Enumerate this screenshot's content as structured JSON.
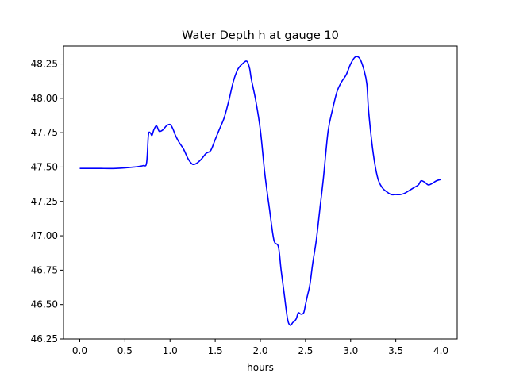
{
  "chart_data": {
    "type": "line",
    "title": "Water Depth h at gauge 10",
    "xlabel": "hours",
    "ylabel": "",
    "xlim": [
      -0.18,
      4.18
    ],
    "ylim": [
      46.25,
      48.38
    ],
    "xticks": [
      0.0,
      0.5,
      1.0,
      1.5,
      2.0,
      2.5,
      3.0,
      3.5,
      4.0
    ],
    "xtick_labels": [
      "0.0",
      "0.5",
      "1.0",
      "1.5",
      "2.0",
      "2.5",
      "3.0",
      "3.5",
      "4.0"
    ],
    "yticks": [
      46.25,
      46.5,
      46.75,
      47.0,
      47.25,
      47.5,
      47.75,
      48.0,
      48.25
    ],
    "ytick_labels": [
      "46.25",
      "46.50",
      "46.75",
      "47.00",
      "47.25",
      "47.50",
      "47.75",
      "48.00",
      "48.25"
    ],
    "grid": false,
    "legend": "none",
    "series": [
      {
        "color": "#0000ff",
        "x": [
          0.0,
          0.2,
          0.4,
          0.6,
          0.7,
          0.74,
          0.76,
          0.78,
          0.8,
          0.82,
          0.85,
          0.88,
          0.92,
          0.96,
          1.0,
          1.03,
          1.06,
          1.1,
          1.15,
          1.2,
          1.25,
          1.3,
          1.35,
          1.4,
          1.45,
          1.5,
          1.55,
          1.6,
          1.65,
          1.7,
          1.75,
          1.8,
          1.85,
          1.88,
          1.9,
          1.95,
          2.0,
          2.05,
          2.1,
          2.15,
          2.2,
          2.23,
          2.26,
          2.3,
          2.33,
          2.36,
          2.38,
          2.4,
          2.42,
          2.45,
          2.48,
          2.5,
          2.52,
          2.55,
          2.58,
          2.62,
          2.66,
          2.7,
          2.75,
          2.8,
          2.85,
          2.9,
          2.95,
          3.0,
          3.05,
          3.1,
          3.15,
          3.18,
          3.2,
          3.25,
          3.3,
          3.35,
          3.4,
          3.45,
          3.5,
          3.55,
          3.6,
          3.65,
          3.7,
          3.75,
          3.78,
          3.82,
          3.86,
          3.9,
          3.95,
          4.0
        ],
        "values": [
          47.49,
          47.49,
          47.49,
          47.5,
          47.51,
          47.53,
          47.73,
          47.75,
          47.73,
          47.77,
          47.8,
          47.76,
          47.77,
          47.8,
          47.81,
          47.78,
          47.73,
          47.68,
          47.63,
          47.56,
          47.52,
          47.53,
          47.56,
          47.6,
          47.62,
          47.7,
          47.78,
          47.86,
          47.98,
          48.12,
          48.21,
          48.25,
          48.27,
          48.22,
          48.14,
          47.98,
          47.77,
          47.45,
          47.2,
          46.97,
          46.92,
          46.75,
          46.6,
          46.4,
          46.35,
          46.37,
          46.38,
          46.4,
          46.44,
          46.43,
          46.44,
          46.5,
          46.56,
          46.65,
          46.8,
          46.97,
          47.2,
          47.43,
          47.76,
          47.92,
          48.05,
          48.12,
          48.17,
          48.25,
          48.3,
          48.29,
          48.2,
          48.1,
          47.9,
          47.6,
          47.42,
          47.35,
          47.32,
          47.3,
          47.3,
          47.3,
          47.31,
          47.33,
          47.35,
          47.37,
          47.4,
          47.39,
          47.37,
          47.38,
          47.4,
          47.41
        ]
      }
    ]
  }
}
